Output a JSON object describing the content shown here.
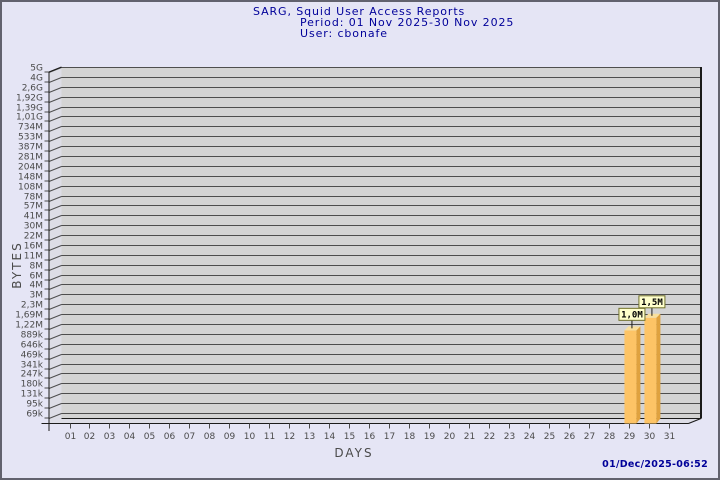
{
  "header": {
    "title": "SARG, Squid User Access Reports",
    "period": "Period: 01 Nov 2025-30 Nov 2025",
    "user": "User: cbonafe"
  },
  "footer": {
    "timestamp": "01/Dec/2025-06:52"
  },
  "colors": {
    "background": "#E5E5F5",
    "border": "#62626E",
    "title_text": "#000099",
    "axis_text": "#4B4B4B",
    "plot_bg": "#D4D4D4",
    "wall_bg": "#DDDDE6",
    "grid_line": "#4E4E4E",
    "edge_line": "#1B1B1B",
    "bar_face": "#FDC466",
    "bar_side": "#DFA23F",
    "bar_top": "#F8DF9D",
    "value_box_fill": "#FFFFCC",
    "value_box_border": "#72722C",
    "value_box_text": "#000000",
    "timestamp_text": "#000099"
  },
  "chart_data": {
    "type": "bar",
    "title": "SARG, Squid User Access Reports",
    "xlabel": "DAYS",
    "ylabel": "BYTES",
    "y_scale": "log",
    "grid": true,
    "legend_position": "none",
    "y_axis": {
      "min_value": 69000,
      "max_value": 5000000000,
      "min_label": "69k",
      "max_label": "5G"
    },
    "y_tick_labels": [
      "5G",
      "4G",
      "2,6G",
      "1,92G",
      "1,39G",
      "1,01G",
      "734M",
      "533M",
      "387M",
      "281M",
      "204M",
      "148M",
      "108M",
      "78M",
      "57M",
      "41M",
      "30M",
      "22M",
      "16M",
      "11M",
      "8M",
      "6M",
      "4M",
      "3M",
      "2,3M",
      "1,69M",
      "1,22M",
      "889k",
      "646k",
      "469k",
      "341k",
      "247k",
      "180k",
      "131k",
      "95k",
      "69k"
    ],
    "categories": [
      "01",
      "02",
      "03",
      "04",
      "05",
      "06",
      "07",
      "08",
      "09",
      "10",
      "11",
      "12",
      "13",
      "14",
      "15",
      "16",
      "17",
      "18",
      "19",
      "20",
      "21",
      "22",
      "23",
      "24",
      "25",
      "26",
      "27",
      "28",
      "29",
      "30",
      "31"
    ],
    "values": [
      null,
      null,
      null,
      null,
      null,
      null,
      null,
      null,
      null,
      null,
      null,
      null,
      null,
      null,
      null,
      null,
      null,
      null,
      null,
      null,
      null,
      null,
      null,
      null,
      null,
      null,
      null,
      null,
      1000000,
      1500000,
      null
    ],
    "bars": [
      {
        "category": "29",
        "value": 1000000,
        "label": "1,0M"
      },
      {
        "category": "30",
        "value": 1500000,
        "label": "1,5M"
      }
    ]
  }
}
